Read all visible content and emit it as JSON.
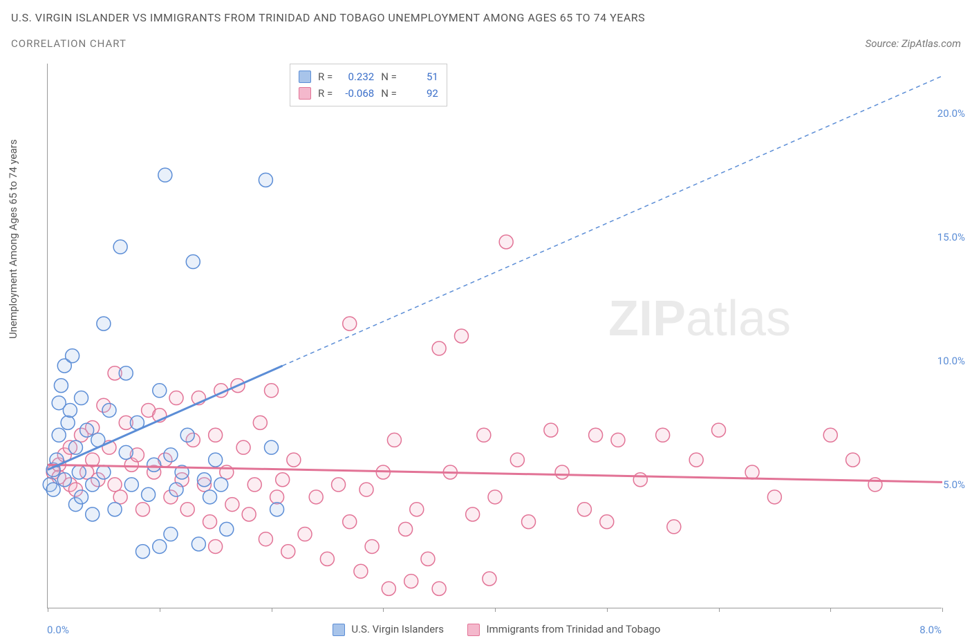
{
  "title": "U.S. VIRGIN ISLANDER VS IMMIGRANTS FROM TRINIDAD AND TOBAGO UNEMPLOYMENT AMONG AGES 65 TO 74 YEARS",
  "subtitle": "CORRELATION CHART",
  "source_label": "Source: ZipAtlas.com",
  "y_axis_label": "Unemployment Among Ages 65 to 74 years",
  "watermark_zip": "ZIP",
  "watermark_atlas": "atlas",
  "chart": {
    "type": "scatter",
    "xlim": [
      0,
      8
    ],
    "ylim": [
      0,
      22
    ],
    "x_tick_start": "0.0%",
    "x_tick_end": "8.0%",
    "y_tick_labels": [
      "5.0%",
      "10.0%",
      "15.0%",
      "20.0%"
    ],
    "y_tick_values": [
      5,
      10,
      15,
      20
    ],
    "x_tick_positions": [
      0,
      1,
      2,
      3,
      4,
      5,
      6,
      7,
      8
    ],
    "background_color": "#ffffff",
    "axis_color": "#999999",
    "marker_radius": 10,
    "marker_stroke_width": 1.5,
    "marker_fill_opacity": 0.25,
    "series": [
      {
        "name": "U.S. Virgin Islanders",
        "color_stroke": "#5b8dd6",
        "color_fill": "#a8c4ea",
        "R": "0.232",
        "N": "51",
        "trend_solid": {
          "x1": 0.0,
          "y1": 5.6,
          "x2": 2.1,
          "y2": 9.8
        },
        "trend_dashed": {
          "x1": 2.1,
          "y1": 9.8,
          "x2": 8.0,
          "y2": 21.5
        },
        "trend_width_solid": 3,
        "trend_width_dashed": 1.5,
        "points": [
          [
            0.02,
            5.0
          ],
          [
            0.05,
            5.6
          ],
          [
            0.05,
            4.8
          ],
          [
            0.08,
            6.0
          ],
          [
            0.1,
            7.0
          ],
          [
            0.1,
            8.3
          ],
          [
            0.12,
            9.0
          ],
          [
            0.15,
            9.8
          ],
          [
            0.15,
            5.2
          ],
          [
            0.18,
            7.5
          ],
          [
            0.2,
            8.0
          ],
          [
            0.22,
            10.2
          ],
          [
            0.25,
            4.2
          ],
          [
            0.25,
            6.5
          ],
          [
            0.28,
            5.5
          ],
          [
            0.3,
            8.5
          ],
          [
            0.3,
            4.5
          ],
          [
            0.35,
            7.2
          ],
          [
            0.4,
            5.0
          ],
          [
            0.4,
            3.8
          ],
          [
            0.45,
            6.8
          ],
          [
            0.5,
            11.5
          ],
          [
            0.5,
            5.5
          ],
          [
            0.55,
            8.0
          ],
          [
            0.6,
            4.0
          ],
          [
            0.65,
            14.6
          ],
          [
            0.7,
            9.5
          ],
          [
            0.7,
            6.3
          ],
          [
            0.75,
            5.0
          ],
          [
            0.8,
            7.5
          ],
          [
            0.85,
            2.3
          ],
          [
            0.9,
            4.6
          ],
          [
            0.95,
            5.8
          ],
          [
            1.0,
            8.8
          ],
          [
            1.0,
            2.5
          ],
          [
            1.05,
            17.5
          ],
          [
            1.1,
            6.2
          ],
          [
            1.1,
            3.0
          ],
          [
            1.15,
            4.8
          ],
          [
            1.2,
            5.5
          ],
          [
            1.25,
            7.0
          ],
          [
            1.3,
            14.0
          ],
          [
            1.35,
            2.6
          ],
          [
            1.4,
            5.2
          ],
          [
            1.45,
            4.5
          ],
          [
            1.5,
            6.0
          ],
          [
            1.55,
            5.0
          ],
          [
            1.6,
            3.2
          ],
          [
            1.95,
            17.3
          ],
          [
            2.0,
            6.5
          ],
          [
            2.05,
            4.0
          ]
        ]
      },
      {
        "name": "Immigrants from Trinidad and Tobago",
        "color_stroke": "#e27396",
        "color_fill": "#f4b8cc",
        "R": "-0.068",
        "N": "92",
        "trend_solid": {
          "x1": 0.0,
          "y1": 5.8,
          "x2": 8.0,
          "y2": 5.1
        },
        "trend_dashed": null,
        "trend_width_solid": 3,
        "points": [
          [
            0.05,
            5.5
          ],
          [
            0.1,
            5.8
          ],
          [
            0.1,
            5.3
          ],
          [
            0.15,
            6.2
          ],
          [
            0.2,
            5.0
          ],
          [
            0.2,
            6.5
          ],
          [
            0.25,
            4.8
          ],
          [
            0.3,
            7.0
          ],
          [
            0.35,
            5.5
          ],
          [
            0.4,
            6.0
          ],
          [
            0.4,
            7.3
          ],
          [
            0.45,
            5.2
          ],
          [
            0.5,
            8.2
          ],
          [
            0.55,
            6.5
          ],
          [
            0.6,
            5.0
          ],
          [
            0.6,
            9.5
          ],
          [
            0.65,
            4.5
          ],
          [
            0.7,
            7.5
          ],
          [
            0.75,
            5.8
          ],
          [
            0.8,
            6.2
          ],
          [
            0.85,
            4.0
          ],
          [
            0.9,
            8.0
          ],
          [
            0.95,
            5.5
          ],
          [
            1.0,
            7.8
          ],
          [
            1.05,
            6.0
          ],
          [
            1.1,
            4.5
          ],
          [
            1.15,
            8.5
          ],
          [
            1.2,
            5.2
          ],
          [
            1.25,
            4.0
          ],
          [
            1.3,
            6.8
          ],
          [
            1.35,
            8.5
          ],
          [
            1.4,
            5.0
          ],
          [
            1.45,
            3.5
          ],
          [
            1.5,
            7.0
          ],
          [
            1.5,
            2.5
          ],
          [
            1.55,
            8.8
          ],
          [
            1.6,
            5.5
          ],
          [
            1.65,
            4.2
          ],
          [
            1.7,
            9.0
          ],
          [
            1.75,
            6.5
          ],
          [
            1.8,
            3.8
          ],
          [
            1.85,
            5.0
          ],
          [
            1.9,
            7.5
          ],
          [
            1.95,
            2.8
          ],
          [
            2.0,
            8.8
          ],
          [
            2.05,
            4.5
          ],
          [
            2.1,
            5.2
          ],
          [
            2.15,
            2.3
          ],
          [
            2.2,
            6.0
          ],
          [
            2.3,
            3.0
          ],
          [
            2.4,
            4.5
          ],
          [
            2.5,
            2.0
          ],
          [
            2.6,
            5.0
          ],
          [
            2.7,
            11.5
          ],
          [
            2.7,
            3.5
          ],
          [
            2.8,
            1.5
          ],
          [
            2.85,
            4.8
          ],
          [
            2.9,
            2.5
          ],
          [
            3.0,
            5.5
          ],
          [
            3.05,
            0.8
          ],
          [
            3.1,
            6.8
          ],
          [
            3.2,
            3.2
          ],
          [
            3.25,
            1.1
          ],
          [
            3.3,
            4.0
          ],
          [
            3.4,
            2.0
          ],
          [
            3.5,
            10.5
          ],
          [
            3.5,
            0.8
          ],
          [
            3.6,
            5.5
          ],
          [
            3.7,
            11.0
          ],
          [
            3.8,
            3.8
          ],
          [
            3.9,
            7.0
          ],
          [
            3.95,
            1.2
          ],
          [
            4.0,
            4.5
          ],
          [
            4.1,
            14.8
          ],
          [
            4.2,
            6.0
          ],
          [
            4.3,
            3.5
          ],
          [
            4.5,
            7.2
          ],
          [
            4.6,
            5.5
          ],
          [
            4.8,
            4.0
          ],
          [
            4.9,
            7.0
          ],
          [
            5.0,
            3.5
          ],
          [
            5.1,
            6.8
          ],
          [
            5.3,
            5.2
          ],
          [
            5.5,
            7.0
          ],
          [
            5.6,
            3.3
          ],
          [
            5.8,
            6.0
          ],
          [
            6.0,
            7.2
          ],
          [
            6.3,
            5.5
          ],
          [
            6.5,
            4.5
          ],
          [
            7.0,
            7.0
          ],
          [
            7.2,
            6.0
          ],
          [
            7.4,
            5.0
          ]
        ]
      }
    ]
  },
  "stats_box": {
    "R_label": "R =",
    "N_label": "N ="
  },
  "colors": {
    "title_text": "#555555",
    "blue_text": "#3b6fc9",
    "watermark": "#000000"
  },
  "typography": {
    "title_fontsize": 16,
    "axis_label_fontsize": 15,
    "tick_fontsize": 15,
    "watermark_fontsize": 72
  }
}
